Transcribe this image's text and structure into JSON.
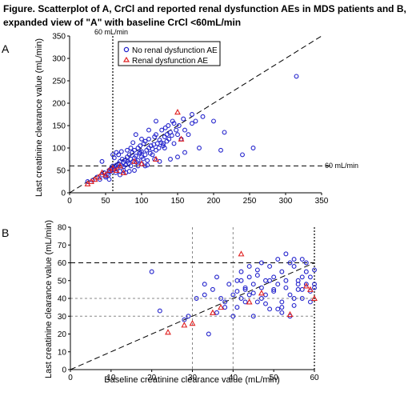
{
  "title": "Figure. Scatterplot of A, CrCl and reported renal dysfunction AEs in MDS patients and B, expanded view of \"A\" with baseline CrCl <60mL/min",
  "colors": {
    "no_ae": "#2222cc",
    "ae": "#e02020",
    "axis": "#000000",
    "ref_line": "#000000",
    "grid_dotted": "#888888"
  },
  "chart_data": [
    {
      "panel": "A",
      "type": "scatter",
      "ylabel": "Last creatinine clearance value (mL/min)",
      "xlabel": "",
      "xlim": [
        0,
        350
      ],
      "ylim": [
        0,
        350
      ],
      "xticks": [
        "0",
        "50",
        "100",
        "150",
        "200",
        "250",
        "300",
        "350"
      ],
      "yticks": [
        "0",
        "50",
        "100",
        "150",
        "200",
        "250",
        "300",
        "350"
      ],
      "legend": {
        "placement": "top-center",
        "entries": [
          "No renal dysfunction AE",
          "Renal dysfunction AE"
        ]
      },
      "annotations": {
        "vline_label": "60 mL/min",
        "hline_label": "60 mL/min"
      },
      "reference_lines": {
        "vertical_x": 60,
        "horizontal_y": 60,
        "diagonal": "y=x"
      },
      "series": [
        {
          "name": "No renal dysfunction AE",
          "marker": "circle",
          "x": [
            25,
            32,
            38,
            42,
            45,
            48,
            50,
            52,
            55,
            57,
            58,
            60,
            62,
            63,
            65,
            66,
            68,
            70,
            70,
            72,
            73,
            75,
            75,
            77,
            78,
            80,
            80,
            82,
            83,
            85,
            85,
            87,
            88,
            90,
            90,
            92,
            93,
            95,
            95,
            97,
            98,
            100,
            100,
            102,
            103,
            105,
            105,
            107,
            108,
            110,
            110,
            112,
            113,
            115,
            117,
            118,
            120,
            120,
            122,
            124,
            125,
            127,
            128,
            130,
            132,
            133,
            135,
            137,
            138,
            140,
            142,
            143,
            145,
            148,
            150,
            152,
            155,
            158,
            160,
            165,
            170,
            175,
            185,
            200,
            180,
            210,
            215,
            90,
            60,
            65,
            120,
            140,
            100,
            130,
            85,
            55,
            70,
            150,
            160,
            110,
            95,
            75,
            45,
            50,
            80,
            105,
            115,
            125,
            135,
            88,
            62,
            68,
            72,
            240,
            255,
            315,
            145,
            170,
            92,
            100,
            78,
            118,
            132,
            98,
            64,
            54,
            58,
            83,
            108
          ],
          "y": [
            25,
            28,
            35,
            30,
            40,
            45,
            38,
            42,
            50,
            48,
            55,
            60,
            52,
            58,
            62,
            55,
            65,
            70,
            48,
            60,
            75,
            58,
            68,
            72,
            62,
            80,
            70,
            66,
            85,
            75,
            60,
            90,
            70,
            78,
            95,
            82,
            68,
            100,
            72,
            88,
            105,
            80,
            92,
            76,
            110,
            85,
            115,
            95,
            72,
            100,
            120,
            88,
            105,
            98,
            108,
            125,
            95,
            130,
            110,
            100,
            118,
            112,
            140,
            105,
            125,
            145,
            115,
            150,
            120,
            135,
            128,
            160,
            110,
            140,
            130,
            150,
            120,
            165,
            140,
            130,
            155,
            160,
            170,
            160,
            100,
            95,
            135,
            50,
            85,
            90,
            160,
            75,
            120,
            110,
            100,
            30,
            40,
            80,
            90,
            140,
            60,
            50,
            70,
            35,
            95,
            60,
            85,
            70,
            130,
            112,
            78,
            85,
            92,
            85,
            100,
            260,
            155,
            175,
            130,
            65,
            45,
            75,
            100,
            90,
            45,
            40,
            52,
            48,
            62
          ]
        },
        {
          "name": "Renal dysfunction AE",
          "marker": "triangle",
          "x": [
            25,
            30,
            35,
            40,
            45,
            50,
            55,
            60,
            65,
            70,
            75,
            90,
            100,
            120,
            150,
            155
          ],
          "y": [
            20,
            25,
            30,
            35,
            45,
            40,
            50,
            55,
            50,
            60,
            45,
            70,
            65,
            75,
            180,
            120
          ]
        }
      ]
    },
    {
      "panel": "B",
      "type": "scatter",
      "xlabel": "Baseline creatinine clearance value (mL/min)",
      "ylabel": "Last creatinine clearance value (mL/min)",
      "xlim": [
        0,
        60
      ],
      "ylim": [
        0,
        80
      ],
      "xticks": [
        "0",
        "10",
        "20",
        "30",
        "40",
        "50",
        "60"
      ],
      "yticks": [
        "0",
        "10",
        "20",
        "30",
        "40",
        "50",
        "60",
        "70",
        "80"
      ],
      "reference_lines": {
        "horizontal_dashed": [
          60
        ],
        "horizontal_dotted": [
          30,
          40
        ],
        "vertical_dotted": [
          30,
          40,
          60
        ],
        "diagonal": "y=x"
      },
      "series": [
        {
          "name": "No renal dysfunction AE",
          "marker": "circle",
          "x": [
            20,
            22,
            28,
            29,
            31,
            33,
            34,
            35,
            36,
            37,
            38,
            39,
            40,
            40,
            41,
            41,
            42,
            42,
            43,
            43,
            44,
            44,
            45,
            45,
            46,
            46,
            47,
            47,
            48,
            48,
            49,
            49,
            50,
            50,
            51,
            51,
            52,
            52,
            53,
            53,
            54,
            54,
            55,
            55,
            56,
            56,
            57,
            57,
            58,
            58,
            59,
            59,
            60,
            60,
            45,
            50,
            55,
            52,
            48,
            42,
            38,
            44,
            46,
            53,
            57,
            59,
            41,
            47,
            51,
            54,
            56,
            58,
            43,
            49,
            60,
            36,
            33,
            52,
            55,
            57
          ],
          "y": [
            55,
            33,
            28,
            30,
            40,
            48,
            20,
            45,
            32,
            40,
            38,
            48,
            30,
            42,
            35,
            50,
            40,
            55,
            45,
            38,
            52,
            42,
            30,
            48,
            56,
            38,
            46,
            60,
            42,
            50,
            34,
            58,
            44,
            52,
            48,
            62,
            38,
            55,
            46,
            50,
            42,
            60,
            36,
            58,
            50,
            45,
            40,
            62,
            48,
            55,
            52,
            44,
            46,
            56,
            43,
            45,
            40,
            32,
            37,
            50,
            35,
            58,
            53,
            65,
            52,
            38,
            44,
            40,
            34,
            30,
            48,
            60,
            46,
            50,
            48,
            52,
            42,
            35,
            62,
            45
          ]
        },
        {
          "name": "Renal dysfunction AE",
          "marker": "triangle",
          "x": [
            24,
            28,
            30,
            35,
            37,
            44,
            47,
            42,
            54,
            58,
            59,
            60
          ],
          "y": [
            21,
            25,
            26,
            32,
            35,
            38,
            43,
            65,
            31,
            47,
            45,
            40
          ]
        }
      ]
    }
  ]
}
